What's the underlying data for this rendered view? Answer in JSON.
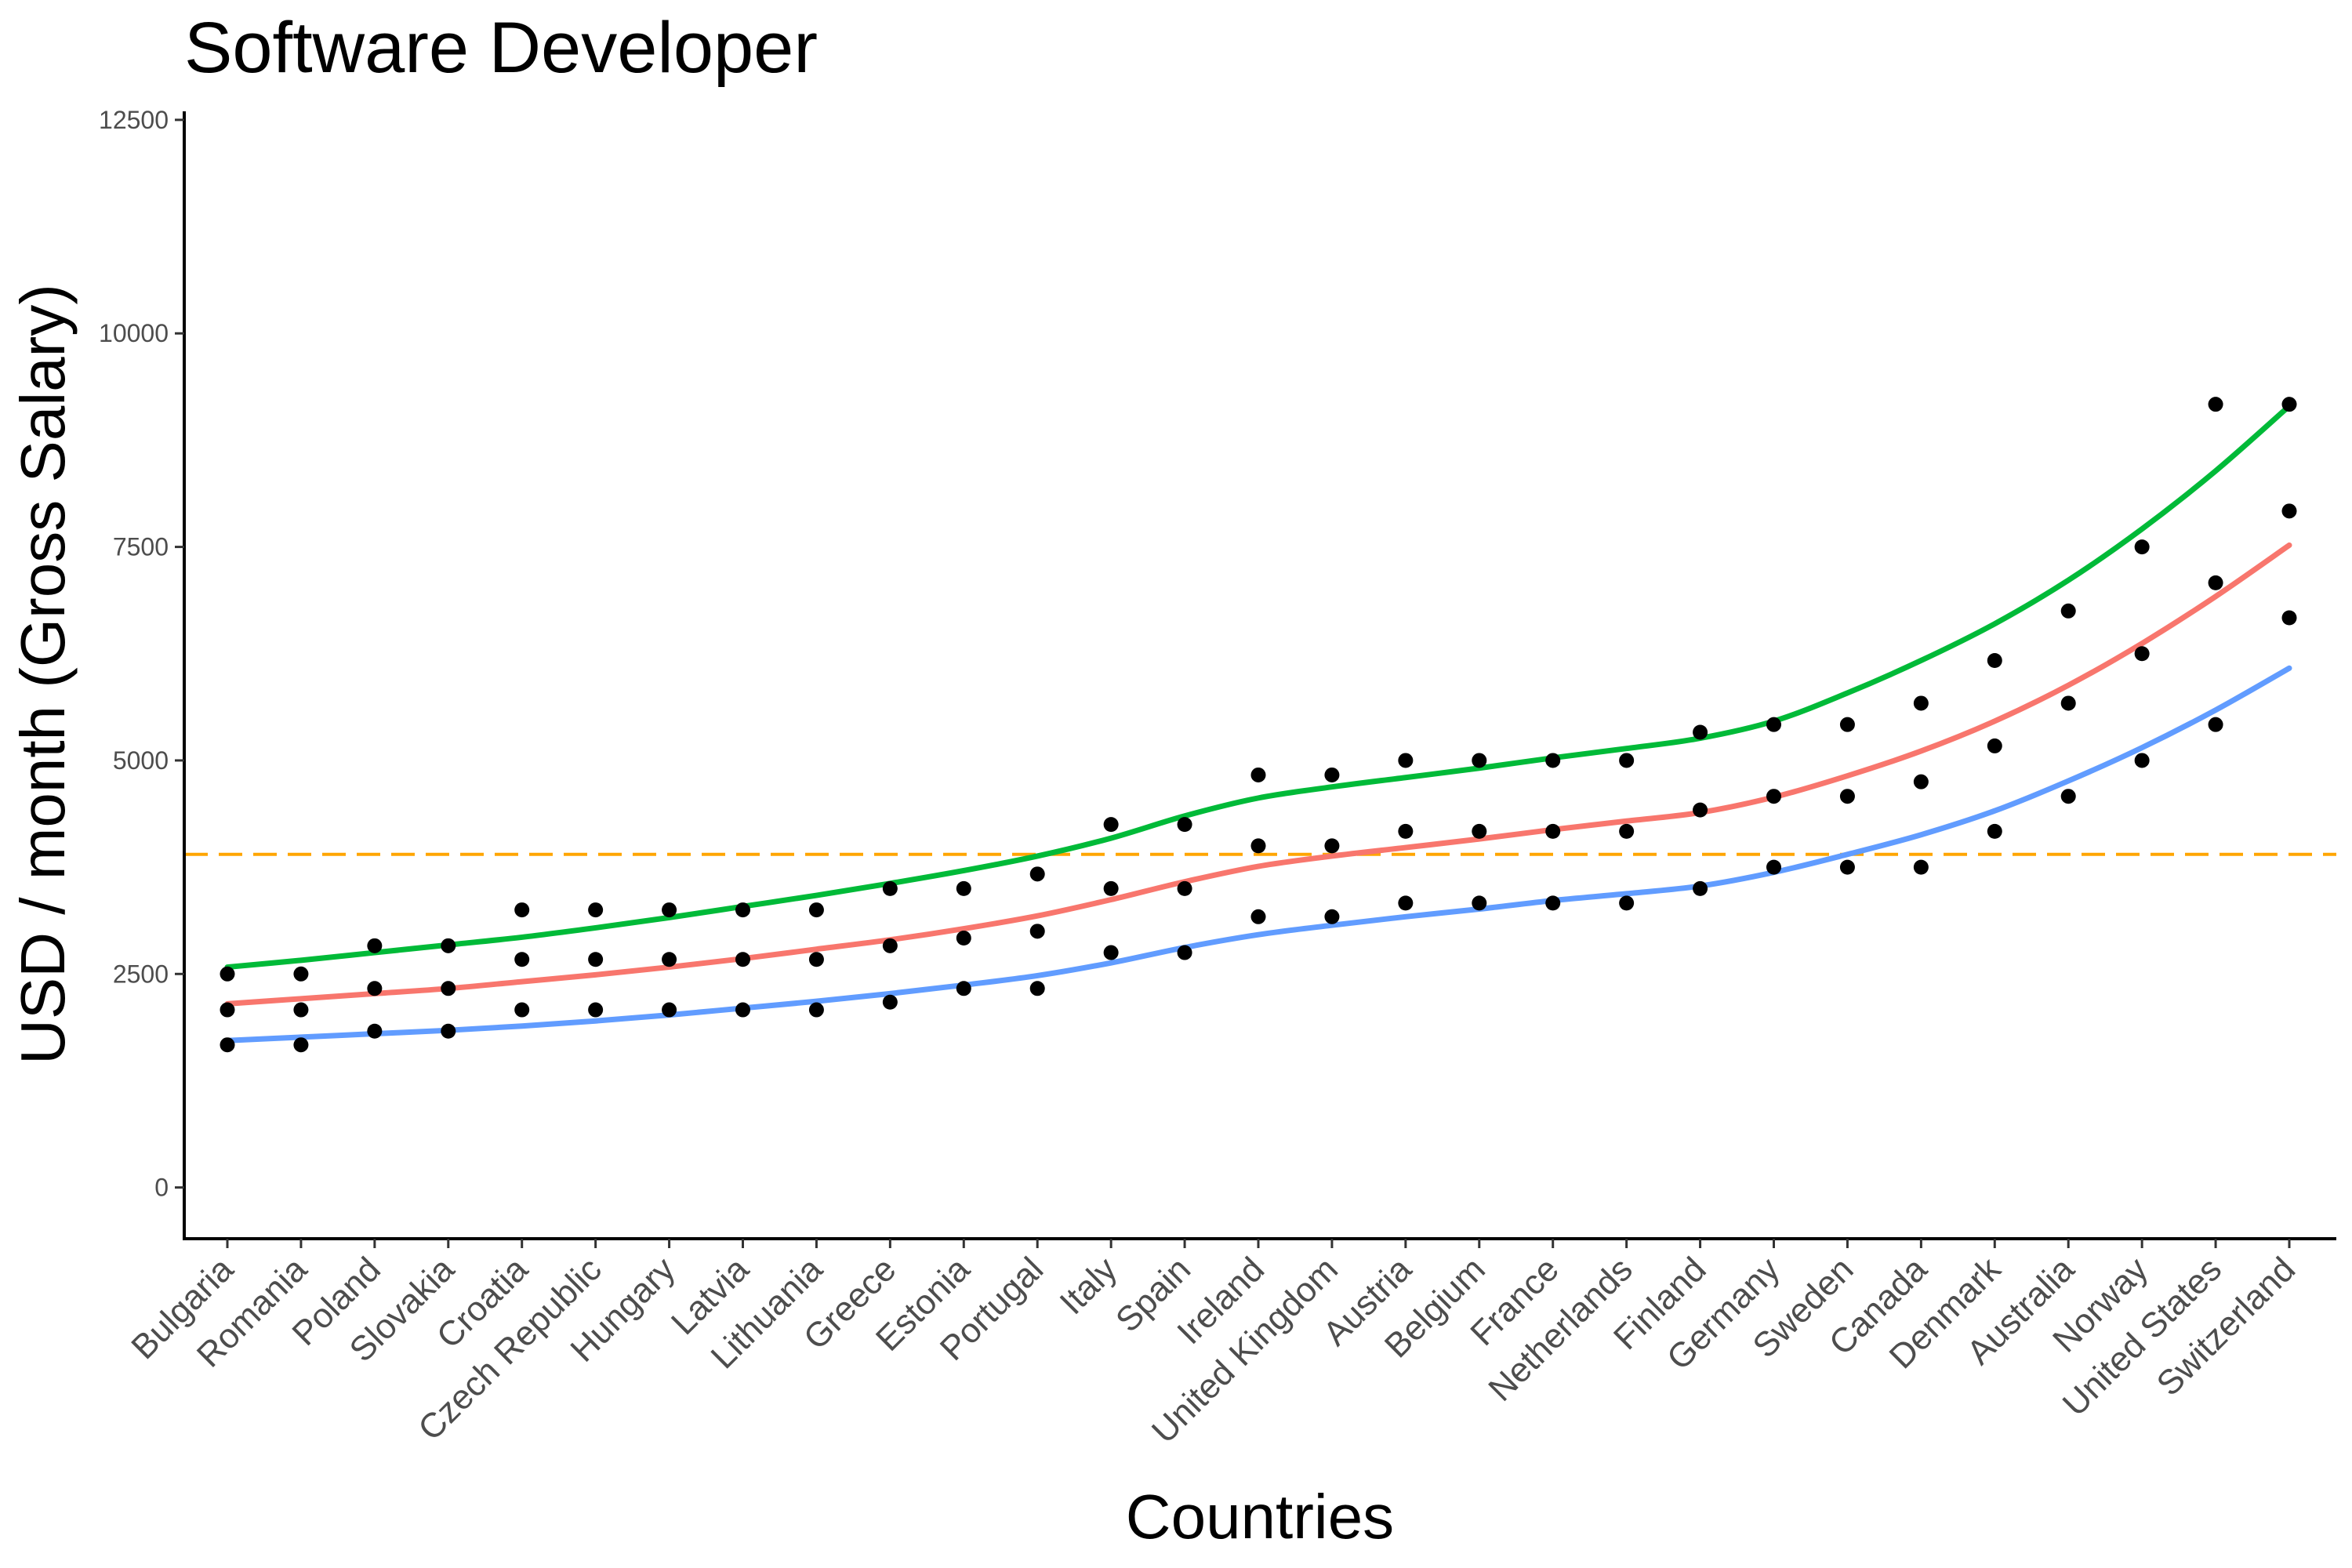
{
  "chart_data": {
    "type": "scatter",
    "title": "Software Developer",
    "xlabel": "Countries",
    "ylabel": "USD / month (Gross Salary)",
    "ylim": [
      -600,
      12600
    ],
    "yticks": [
      0,
      2500,
      5000,
      7500,
      10000,
      12500
    ],
    "grid": false,
    "legend": "none",
    "categories": [
      "Bulgaria",
      "Romania",
      "Poland",
      "Slovakia",
      "Croatia",
      "Czech Republic",
      "Hungary",
      "Latvia",
      "Lithuania",
      "Greece",
      "Estonia",
      "Portugal",
      "Italy",
      "Spain",
      "Ireland",
      "United Kingdom",
      "Austria",
      "Belgium",
      "France",
      "Netherlands",
      "Finland",
      "Germany",
      "Sweden",
      "Canada",
      "Denmark",
      "Australia",
      "Norway",
      "United States",
      "Switzerland"
    ],
    "points": {
      "color": "#000000",
      "high": [
        2500,
        2500,
        2830,
        2830,
        3250,
        3250,
        3250,
        3250,
        3250,
        3500,
        3500,
        3670,
        4250,
        4250,
        4830,
        4830,
        5000,
        5000,
        5000,
        5000,
        5330,
        5420,
        5420,
        5670,
        6170,
        6750,
        7500,
        9170,
        9170
      ],
      "mid": [
        2080,
        2080,
        2330,
        2330,
        2670,
        2670,
        2670,
        2670,
        2670,
        2830,
        2920,
        3000,
        3500,
        3500,
        4000,
        4000,
        4170,
        4170,
        4170,
        4170,
        4420,
        4580,
        4580,
        4750,
        5170,
        5670,
        6250,
        7080,
        7920
      ],
      "low": [
        1670,
        1670,
        1830,
        1830,
        2080,
        2080,
        2080,
        2080,
        2080,
        2170,
        2330,
        2330,
        2750,
        2750,
        3170,
        3170,
        3330,
        3330,
        3330,
        3330,
        3500,
        3750,
        3750,
        3750,
        4170,
        4580,
        5000,
        5420,
        6670
      ]
    },
    "series": [
      {
        "color": "#00ba38",
        "values": [
          2580,
          2660,
          2750,
          2840,
          2930,
          3040,
          3160,
          3290,
          3420,
          3560,
          3710,
          3880,
          4090,
          4350,
          4560,
          4690,
          4800,
          4910,
          5030,
          5140,
          5260,
          5460,
          5790,
          6170,
          6600,
          7110,
          7710,
          8390,
          9150
        ]
      },
      {
        "color": "#f8766d",
        "values": [
          2150,
          2210,
          2270,
          2330,
          2410,
          2490,
          2580,
          2680,
          2790,
          2900,
          3030,
          3180,
          3370,
          3580,
          3760,
          3880,
          3980,
          4080,
          4190,
          4290,
          4390,
          4570,
          4820,
          5110,
          5460,
          5880,
          6370,
          6920,
          7520
        ]
      },
      {
        "color": "#619cff",
        "values": [
          1720,
          1760,
          1800,
          1840,
          1890,
          1950,
          2020,
          2100,
          2180,
          2270,
          2370,
          2480,
          2630,
          2810,
          2960,
          3070,
          3170,
          3260,
          3360,
          3440,
          3530,
          3690,
          3900,
          4130,
          4410,
          4760,
          5150,
          5590,
          6080
        ]
      }
    ],
    "reference_line": {
      "value": 3900,
      "color": "#ffa500",
      "style": "dashed"
    }
  }
}
